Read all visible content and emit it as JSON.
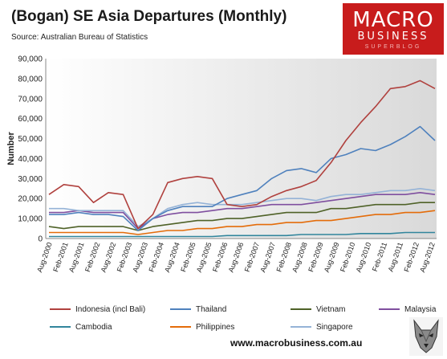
{
  "title": "(Bogan) SE Asia Departures (Monthly)",
  "subtitle": "Source: Australian Bureau of Statistics",
  "logo": {
    "line1": "MACRO",
    "line2": "BUSINESS",
    "line3": "SUPERBLOG"
  },
  "website": "www.macrobusiness.com.au",
  "colors": {
    "Indonesia (incl Bali)": "#b0413e",
    "Thailand": "#4f81bd",
    "Vietnam": "#4f6228",
    "Malaysia": "#7f4f9f",
    "Cambodia": "#31859c",
    "Philippines": "#e46c0a",
    "Singapore": "#95b3d7"
  },
  "chart_data": {
    "type": "line",
    "ylabel": "Number",
    "ylim": [
      0,
      90000
    ],
    "yticks": [
      "0",
      "10,000",
      "20,000",
      "30,000",
      "40,000",
      "50,000",
      "60,000",
      "70,000",
      "80,000",
      "90,000"
    ],
    "xticks": [
      "Aug-2000",
      "Feb-2001",
      "Aug-2001",
      "Feb-2002",
      "Aug-2002",
      "Feb-2003",
      "Aug-2003",
      "Feb-2004",
      "Aug-2004",
      "Feb-2005",
      "Aug-2005",
      "Feb-2006",
      "Aug-2006",
      "Feb-2007",
      "Aug-2007",
      "Feb-2008",
      "Aug-2008",
      "Feb-2009",
      "Aug-2009",
      "Feb-2010",
      "Aug-2010",
      "Feb-2011",
      "Aug-2011",
      "Feb-2012",
      "Aug-2012"
    ],
    "legend_position": "bottom",
    "grid": false,
    "series": [
      {
        "name": "Indonesia (incl Bali)",
        "values": [
          22000,
          27000,
          26000,
          18000,
          23000,
          22000,
          5000,
          12000,
          28000,
          30000,
          31000,
          30000,
          17000,
          16000,
          17000,
          21000,
          24000,
          26000,
          29000,
          38000,
          49000,
          58000,
          66000,
          75000,
          76000,
          79000,
          75000
        ]
      },
      {
        "name": "Thailand",
        "values": [
          12000,
          12000,
          13000,
          12000,
          12000,
          11000,
          4000,
          10000,
          14000,
          16000,
          16000,
          16000,
          20000,
          22000,
          24000,
          30000,
          34000,
          35000,
          33000,
          40000,
          42000,
          45000,
          44000,
          47000,
          51000,
          56000,
          49000
        ]
      },
      {
        "name": "Vietnam",
        "values": [
          6000,
          5000,
          6000,
          6000,
          6000,
          6000,
          4000,
          6000,
          7000,
          8000,
          9000,
          9000,
          10000,
          10000,
          11000,
          12000,
          13000,
          13000,
          13000,
          15000,
          15000,
          16000,
          17000,
          17000,
          17000,
          18000,
          18000
        ]
      },
      {
        "name": "Malaysia",
        "values": [
          13000,
          13000,
          14000,
          13000,
          13000,
          13000,
          5000,
          10000,
          12000,
          13000,
          13000,
          14000,
          15000,
          15000,
          16000,
          17000,
          17000,
          17000,
          18000,
          19000,
          20000,
          21000,
          22000,
          22000,
          22000,
          23000,
          22000
        ]
      },
      {
        "name": "Cambodia",
        "values": [
          1000,
          1000,
          1000,
          1000,
          1000,
          1000,
          1000,
          1000,
          1000,
          1000,
          1000,
          1000,
          1500,
          1500,
          1500,
          1500,
          1500,
          2000,
          2000,
          2000,
          2000,
          2500,
          2500,
          2500,
          3000,
          3000,
          3000
        ]
      },
      {
        "name": "Philippines",
        "values": [
          3000,
          3000,
          3000,
          3000,
          3000,
          3000,
          2000,
          3000,
          4000,
          4000,
          5000,
          5000,
          6000,
          6000,
          7000,
          7000,
          8000,
          8000,
          9000,
          9000,
          10000,
          11000,
          12000,
          12000,
          13000,
          13000,
          14000
        ]
      },
      {
        "name": "Singapore",
        "values": [
          15000,
          15000,
          14000,
          14000,
          14000,
          14000,
          6000,
          10000,
          15000,
          17000,
          18000,
          17000,
          17000,
          17000,
          18000,
          19000,
          20000,
          20000,
          19000,
          21000,
          22000,
          22000,
          23000,
          24000,
          24000,
          25000,
          24000
        ]
      }
    ]
  }
}
